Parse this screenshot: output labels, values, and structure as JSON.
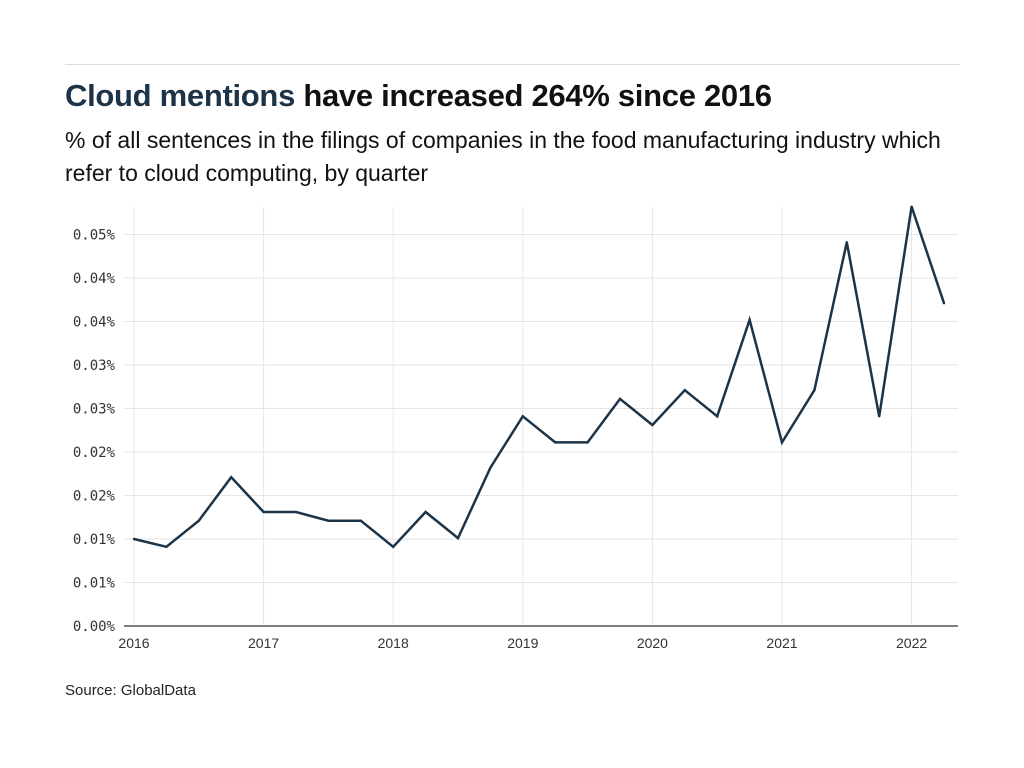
{
  "header": {
    "title_highlight": "Cloud mentions",
    "title_rest": " have increased 264% since 2016",
    "subtitle": "% of all sentences in the filings of companies in the food manufacturing industry which refer to cloud computing, by quarter"
  },
  "footer": {
    "source": "Source: GlobalData"
  },
  "colors": {
    "line": "#1d3448",
    "highlight": "#1d3448",
    "grid": "#e6e6e6",
    "axis": "#555555"
  },
  "chart_data": {
    "type": "line",
    "title": "Cloud mentions have increased 264% since 2016",
    "subtitle": "% of all sentences in the filings of companies in the food manufacturing industry which refer to cloud computing, by quarter",
    "xlabel": "",
    "ylabel": "",
    "x": [
      "2016 Q1",
      "2016 Q2",
      "2016 Q3",
      "2016 Q4",
      "2017 Q1",
      "2017 Q2",
      "2017 Q3",
      "2017 Q4",
      "2018 Q1",
      "2018 Q2",
      "2018 Q3",
      "2018 Q4",
      "2019 Q1",
      "2019 Q2",
      "2019 Q3",
      "2019 Q4",
      "2020 Q1",
      "2020 Q2",
      "2020 Q3",
      "2020 Q4",
      "2021 Q1",
      "2021 Q2",
      "2021 Q3",
      "2021 Q4",
      "2022 Q1",
      "2022 Q2"
    ],
    "series": [
      {
        "name": "Cloud mentions",
        "values": [
          0.01,
          0.0091,
          0.0121,
          0.0171,
          0.0131,
          0.0131,
          0.0121,
          0.0121,
          0.0091,
          0.0131,
          0.0101,
          0.0182,
          0.0241,
          0.0211,
          0.0211,
          0.0261,
          0.0231,
          0.0271,
          0.0241,
          0.0352,
          0.0211,
          0.0271,
          0.0441,
          0.0241,
          0.0482,
          0.0371
        ]
      }
    ],
    "x_tick_labels": [
      "2016",
      "2017",
      "2018",
      "2019",
      "2020",
      "2021",
      "2022"
    ],
    "y_ticks": [
      0,
      0.005,
      0.01,
      0.015,
      0.02,
      0.025,
      0.03,
      0.035,
      0.04,
      0.045
    ],
    "y_tick_labels": [
      "0.00%",
      "0.01%",
      "0.01%",
      "0.02%",
      "0.02%",
      "0.03%",
      "0.03%",
      "0.04%",
      "0.04%",
      "0.05%"
    ],
    "ylim": [
      0,
      0.048
    ],
    "grid": true,
    "legend": "none"
  }
}
